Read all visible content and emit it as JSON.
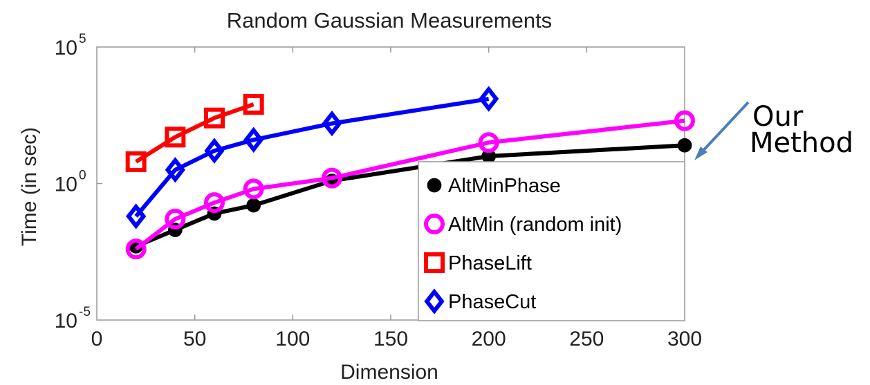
{
  "chart_data": {
    "type": "line",
    "title": "Random Gaussian Measurements",
    "xlabel": "Dimension",
    "ylabel": "Time (in sec)",
    "xlim": [
      0,
      300
    ],
    "ylim_log10": [
      -5,
      5
    ],
    "yscale": "log",
    "xticks": [
      "0",
      "50",
      "100",
      "150",
      "200",
      "250",
      "300"
    ],
    "yticks": [
      {
        "base": "10",
        "exp": "-5"
      },
      {
        "base": "10",
        "exp": "0"
      },
      {
        "base": "10",
        "exp": "5"
      }
    ],
    "grid": false,
    "legend_position": "bottom-right",
    "series": [
      {
        "name": "AltMinPhase",
        "color": "#000000",
        "marker": "filled-circle",
        "x": [
          20,
          40,
          60,
          80,
          120,
          200,
          300
        ],
        "log10_y": [
          -2.3,
          -1.7,
          -1.1,
          -0.8,
          0.1,
          1.0,
          1.4
        ]
      },
      {
        "name": "AltMin (random init)",
        "color": "#ff00ff",
        "marker": "open-circle",
        "x": [
          20,
          40,
          60,
          80,
          120,
          200,
          300
        ],
        "log10_y": [
          -2.4,
          -1.3,
          -0.7,
          -0.2,
          0.2,
          1.5,
          2.3
        ]
      },
      {
        "name": "PhaseLift",
        "color": "#ff0000",
        "marker": "square",
        "x": [
          20,
          40,
          60,
          80
        ],
        "log10_y": [
          0.8,
          1.7,
          2.4,
          2.9
        ]
      },
      {
        "name": "PhaseCut",
        "color": "#0000ff",
        "marker": "diamond",
        "x": [
          20,
          40,
          60,
          80,
          120,
          200
        ],
        "log10_y": [
          -1.2,
          0.5,
          1.2,
          1.6,
          2.2,
          3.1
        ]
      }
    ],
    "annotation": {
      "lines": [
        "Our",
        "Method"
      ],
      "arrow_color": "#4a7ebb"
    }
  }
}
